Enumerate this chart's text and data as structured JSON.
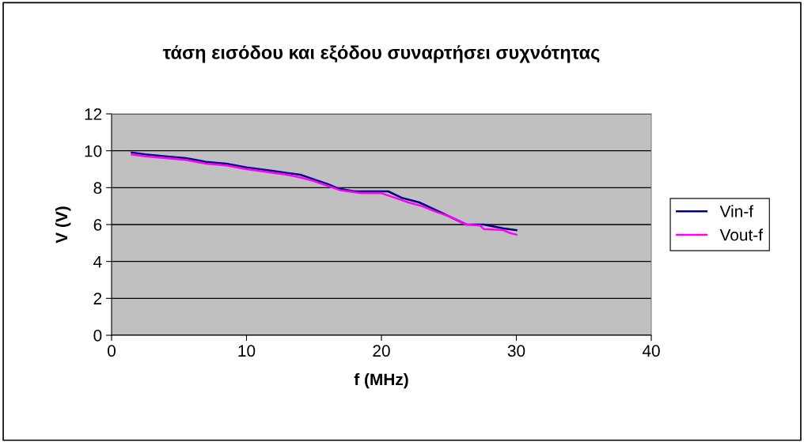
{
  "chart_data": {
    "type": "line",
    "title": "τάση εισόδου και εξόδου συναρτήσει συχνότητας",
    "xlabel": "f (MHz)",
    "ylabel": "V (V)",
    "xlim": [
      0,
      40
    ],
    "xticks": [
      0,
      10,
      20,
      30,
      40
    ],
    "ylim": [
      0,
      12
    ],
    "yticks": [
      0,
      2,
      4,
      6,
      8,
      10,
      12
    ],
    "grid": "y",
    "legend": "right",
    "marker": "none",
    "line_style": "solid",
    "series": [
      {
        "name": "Vin-f",
        "color": "#000080",
        "x": [
          1.5,
          2.5,
          4,
          5.5,
          7,
          8.5,
          10,
          11,
          12,
          13,
          14,
          15,
          16,
          16.8,
          18,
          20.5,
          21.5,
          22.8,
          24,
          25,
          26.3,
          27.6,
          29,
          30
        ],
        "values": [
          9.9,
          9.8,
          9.7,
          9.6,
          9.4,
          9.3,
          9.1,
          9.0,
          8.9,
          8.8,
          8.7,
          8.45,
          8.2,
          7.95,
          7.8,
          7.8,
          7.45,
          7.2,
          6.8,
          6.45,
          6.0,
          6.0,
          5.8,
          5.7
        ]
      },
      {
        "name": "Vout-f",
        "color": "#ff00ff",
        "x": [
          1.5,
          2.5,
          4,
          5.5,
          7,
          8.5,
          10,
          11,
          12,
          13,
          14,
          15,
          16,
          17,
          18.5,
          20,
          21,
          22,
          23,
          24,
          25,
          26.3,
          27.3,
          27.6,
          29,
          29.5,
          30
        ],
        "values": [
          9.8,
          9.7,
          9.6,
          9.5,
          9.3,
          9.2,
          9.0,
          8.9,
          8.8,
          8.7,
          8.55,
          8.35,
          8.1,
          7.85,
          7.7,
          7.7,
          7.45,
          7.2,
          7.0,
          6.7,
          6.45,
          6.0,
          5.95,
          5.75,
          5.7,
          5.55,
          5.45
        ]
      }
    ]
  }
}
